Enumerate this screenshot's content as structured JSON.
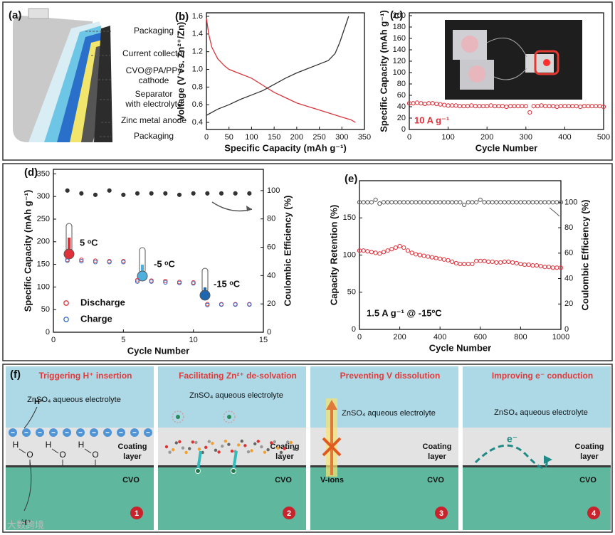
{
  "chart_data": [
    {
      "type": "line",
      "panel_label": "(b)",
      "xlabel": "Specific Capacity (mAh g⁻¹)",
      "ylabel": "Voltage (V vs. Zn²⁺/Zn)",
      "xlim": [
        0,
        350
      ],
      "xticks": [
        0,
        50,
        100,
        150,
        200,
        250,
        300,
        350
      ],
      "ylim": [
        0.32,
        1.64
      ],
      "yticks": [
        0.4,
        0.6,
        0.8,
        {
          "value": 1,
          "label": "1.0"
        },
        1.2,
        1.4,
        1.6
      ],
      "series": [
        {
          "color": "#d9363e",
          "x": [
            0,
            5,
            12,
            25,
            40,
            50,
            75,
            100,
            125,
            150,
            175,
            200,
            225,
            250,
            275,
            300,
            320,
            330
          ],
          "values": [
            1.58,
            1.4,
            1.25,
            1.12,
            1.04,
            1.0,
            0.95,
            0.9,
            0.82,
            0.74,
            0.68,
            0.62,
            0.58,
            0.54,
            0.5,
            0.46,
            0.43,
            0.4
          ]
        },
        {
          "color": "#333333",
          "x": [
            0,
            25,
            50,
            75,
            100,
            125,
            150,
            175,
            200,
            225,
            250,
            270,
            285,
            295,
            305,
            315
          ],
          "values": [
            0.48,
            0.55,
            0.6,
            0.66,
            0.71,
            0.76,
            0.83,
            0.9,
            0.96,
            1.01,
            1.06,
            1.1,
            1.18,
            1.3,
            1.45,
            1.6
          ]
        }
      ]
    },
    {
      "type": "scatter",
      "panel_label": "(c)",
      "xlabel": "Cycle Number",
      "ylabel": "Specific Capacity (mAh g⁻¹)",
      "xlim": [
        0,
        500
      ],
      "xticks": [
        0,
        100,
        200,
        300,
        400,
        500
      ],
      "ylim": [
        0,
        205
      ],
      "yticks": [
        0,
        20,
        40,
        60,
        80,
        100,
        120,
        140,
        160,
        180,
        200
      ],
      "annotations": [
        "10 A g⁻¹"
      ],
      "x": [
        0,
        10,
        20,
        30,
        40,
        50,
        60,
        70,
        80,
        90,
        100,
        110,
        120,
        130,
        140,
        150,
        160,
        170,
        180,
        190,
        200,
        210,
        220,
        230,
        240,
        250,
        260,
        270,
        280,
        290,
        300,
        310,
        320,
        330,
        340,
        350,
        360,
        370,
        380,
        390,
        400,
        410,
        420,
        430,
        440,
        450,
        460,
        470,
        480,
        490,
        500
      ],
      "series": [
        {
          "color": "#e0303a",
          "marker": "open",
          "values": [
            46,
            46,
            47,
            46,
            45,
            46,
            46,
            45,
            44,
            43,
            42,
            42,
            42,
            41,
            41,
            41,
            42,
            41,
            41,
            41,
            41,
            42,
            41,
            41,
            41,
            40,
            41,
            41,
            41,
            41,
            41,
            30,
            41,
            41,
            42,
            41,
            41,
            41,
            40,
            41,
            41,
            41,
            41,
            41,
            40,
            41,
            41,
            41,
            41,
            41,
            40
          ]
        }
      ]
    },
    {
      "type": "scatter",
      "panel_label": "(d)",
      "xlabel": "Cycle Number",
      "ylabel": "Specific Capacity (mAh g⁻¹)",
      "y2label": "Coulombic Efficiency (%)",
      "xlim": [
        0,
        15
      ],
      "xticks": [
        0,
        5,
        10,
        15
      ],
      "ylim": [
        0,
        360
      ],
      "yticks": [
        0,
        50,
        100,
        150,
        200,
        250,
        300,
        350
      ],
      "y2lim": [
        0,
        115
      ],
      "y2ticks": [
        0,
        20,
        40,
        60,
        80,
        100
      ],
      "annotations": [
        "5 ᵒC",
        "-5 ᵒC",
        "-15 ᵒC"
      ],
      "legend": "lower left",
      "x": [
        1,
        2,
        3,
        4,
        5,
        6,
        7,
        8,
        9,
        10,
        11,
        12,
        13,
        14
      ],
      "series": [
        {
          "name": "Discharge",
          "color": "#e0303a",
          "marker": "open",
          "values": [
            160,
            160,
            158,
            157,
            157,
            115,
            114,
            113,
            111,
            110,
            62,
            62,
            62,
            62
          ]
        },
        {
          "name": "Charge",
          "color": "#3a6fc4",
          "marker": "open",
          "values": [
            158,
            157,
            155,
            155,
            155,
            112,
            112,
            110,
            109,
            108,
            60,
            61,
            61,
            61
          ]
        },
        {
          "color": "#333333",
          "marker": "filled",
          "axis": "y2",
          "values": [
            100,
            98,
            97,
            100,
            97,
            98,
            98,
            98,
            97,
            98,
            98,
            98,
            98,
            98
          ]
        }
      ]
    },
    {
      "type": "scatter",
      "panel_label": "(e)",
      "xlabel": "Cycle Number",
      "ylabel": "Capacity Retention (%)",
      "y2label": "Coulombic Efficiency (%)",
      "xlim": [
        0,
        1000
      ],
      "xticks": [
        0,
        200,
        400,
        600,
        800,
        1000
      ],
      "ylim": [
        0,
        200
      ],
      "yticks": [
        0,
        50,
        100,
        150
      ],
      "y2lim": [
        0,
        117
      ],
      "y2ticks": [
        0,
        20,
        40,
        60,
        80,
        100
      ],
      "annotations": [
        "1.5 A g⁻¹ @ -15ºC"
      ],
      "x": [
        0,
        20,
        40,
        60,
        80,
        100,
        120,
        140,
        160,
        180,
        200,
        220,
        240,
        260,
        280,
        300,
        320,
        340,
        360,
        380,
        400,
        420,
        440,
        460,
        480,
        500,
        520,
        540,
        560,
        580,
        600,
        620,
        640,
        660,
        680,
        700,
        720,
        740,
        760,
        780,
        800,
        820,
        840,
        860,
        880,
        900,
        920,
        940,
        960,
        980,
        1000
      ],
      "series": [
        {
          "color": "#e0303a",
          "marker": "open",
          "values": [
            106,
            106,
            105,
            104,
            103,
            102,
            104,
            106,
            108,
            110,
            112,
            110,
            106,
            103,
            101,
            100,
            99,
            98,
            97,
            96,
            95,
            94,
            93,
            91,
            89,
            88,
            88,
            88,
            88,
            92,
            92,
            92,
            91,
            91,
            90,
            90,
            91,
            91,
            90,
            89,
            88,
            87,
            87,
            86,
            86,
            85,
            84,
            84,
            83,
            83,
            83
          ]
        },
        {
          "color": "#555555",
          "marker": "open",
          "axis": "y2",
          "values": [
            100,
            100,
            100,
            100,
            102,
            99,
            100,
            100,
            100,
            100,
            100,
            100,
            100,
            100,
            100,
            100,
            100,
            100,
            100,
            100,
            100,
            100,
            100,
            100,
            100,
            100,
            98,
            100,
            100,
            100,
            102,
            100,
            100,
            100,
            100,
            100,
            100,
            100,
            100,
            100,
            100,
            100,
            100,
            100,
            100,
            100,
            100,
            100,
            100,
            100,
            100
          ]
        }
      ]
    }
  ],
  "panel_a": {
    "panel_label": "(a)",
    "labels": [
      [
        "Packaging"
      ],
      [
        "Current collector"
      ],
      [
        "CVO@PA/PPy",
        "cathode"
      ],
      [
        "Separator",
        "with electrolyte"
      ],
      [
        "Zinc metal anode"
      ],
      [
        "Packaging"
      ]
    ]
  },
  "panel_f": {
    "panel_label": "(f)",
    "panels": [
      {
        "title": "Triggering H⁺ insertion",
        "electrolyte": "ZnSO₄ aqueous electrolyte",
        "coating": [
          "Coating",
          "layer"
        ],
        "substrate": "CVO",
        "number": "1",
        "ions": [
          "H⁺",
          "H⁺"
        ],
        "atoms": [
          "H",
          "O"
        ]
      },
      {
        "title": "Facilitating Zn²⁺ de-solvation",
        "electrolyte": "ZnSO₄ aqueous electrolyte",
        "coating": [
          "Coating",
          "layer"
        ],
        "substrate": "CVO",
        "number": "2"
      },
      {
        "title": "Preventing V dissolution",
        "electrolyte": "ZnSO₄ aqueous electrolyte",
        "coating": [
          "Coating",
          "layer"
        ],
        "substrate": "CVO",
        "number": "3",
        "ions": [
          "V-ions"
        ]
      },
      {
        "title": "Improving e⁻ conduction",
        "electrolyte": "ZnSO₄ aqueous electrolyte",
        "coating": [
          "Coating",
          "layer"
        ],
        "substrate": "CVO",
        "number": "4",
        "ions": [
          "e⁻"
        ]
      }
    ]
  },
  "watermark": "大数跨境"
}
